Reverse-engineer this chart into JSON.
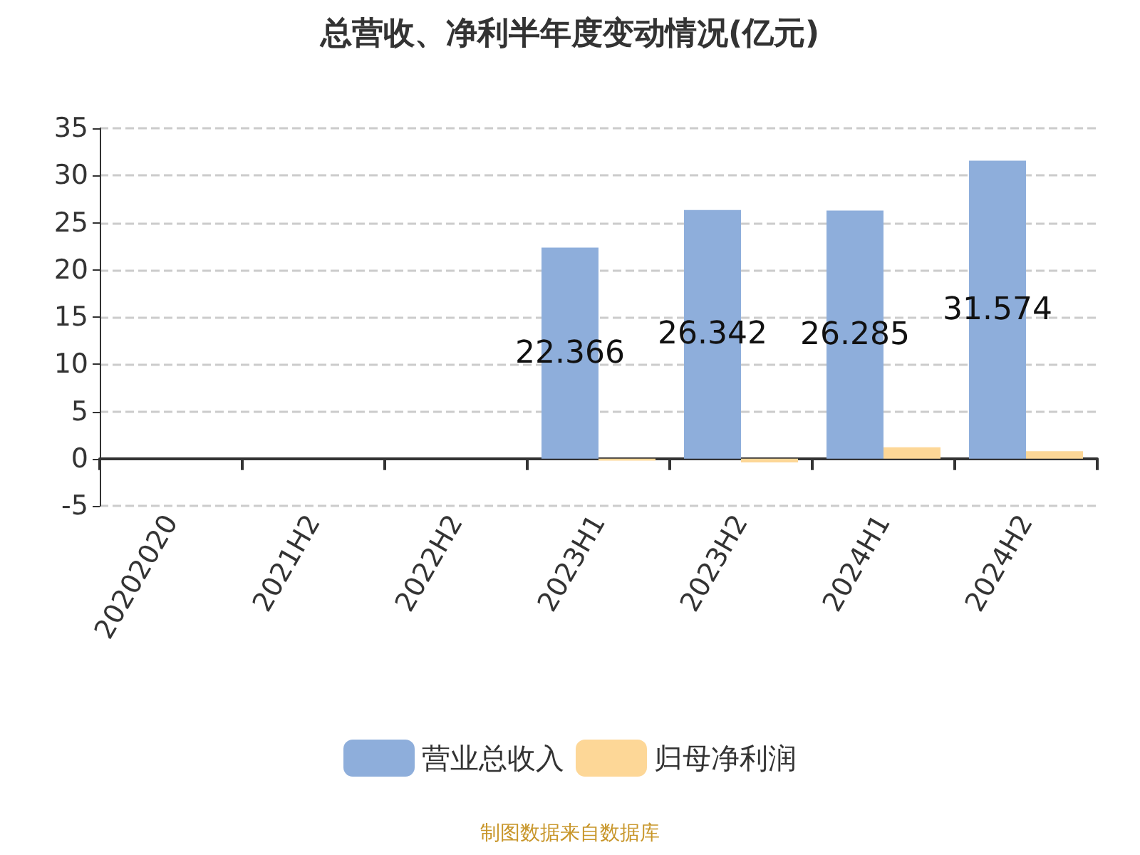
{
  "chart_data": {
    "type": "bar",
    "title": "总营收、净利半年度变动情况(亿元)",
    "categories": [
      "20202020",
      "2021H2",
      "2022H2",
      "2023H1",
      "2023H2",
      "2024H1",
      "2024H2"
    ],
    "series": [
      {
        "name": "营业总收入",
        "color": "#8eaedb",
        "values": [
          null,
          null,
          null,
          22.366,
          26.342,
          26.285,
          31.574
        ],
        "value_labels": [
          null,
          null,
          null,
          "22.366",
          "26.342",
          "26.285",
          "31.574"
        ]
      },
      {
        "name": "归母净利润",
        "color": "#fdd797",
        "values": [
          null,
          null,
          null,
          -0.2,
          -0.4,
          1.2,
          0.8
        ]
      }
    ],
    "ylim": [
      -5,
      35
    ],
    "yticks": [
      -5,
      0,
      5,
      10,
      15,
      20,
      25,
      30,
      35
    ],
    "grid": "y",
    "legend": "bottom",
    "annotations": [
      "制图数据来自数据库"
    ]
  }
}
